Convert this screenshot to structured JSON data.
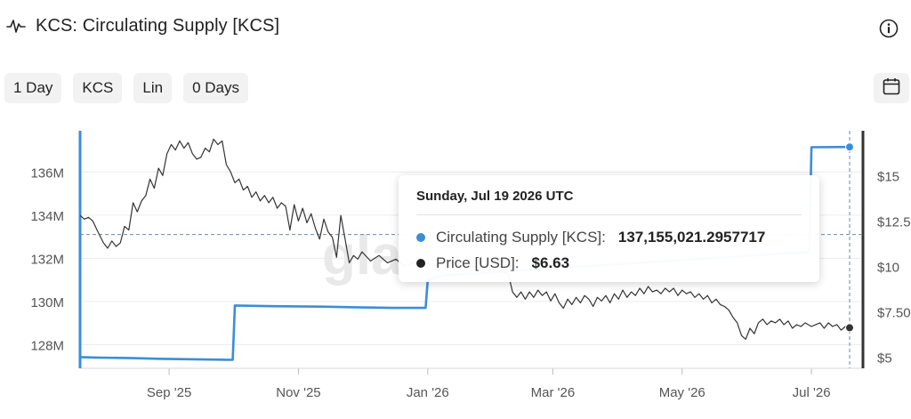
{
  "header": {
    "title": "KCS: Circulating Supply [KCS]",
    "chart_icon": "line-chart-icon",
    "info_icon": "info-icon"
  },
  "toolbar": {
    "interval": "1 Day",
    "unit": "KCS",
    "scale": "Lin",
    "smoothing": "0 Days",
    "calendar_icon": "calendar-icon"
  },
  "tooltip": {
    "date": "Sunday, Jul 19 2026 UTC",
    "rows": [
      {
        "label": "Circulating Supply [KCS]",
        "value": "137,155,021.2957717",
        "color": "#3b8ed6"
      },
      {
        "label": "Price [USD]",
        "value": "$6.63",
        "color": "#222222"
      }
    ]
  },
  "chart_data": {
    "type": "line",
    "title": "KCS: Circulating Supply [KCS]",
    "x_ticks": [
      "Sep '25",
      "Nov '25",
      "Jan '26",
      "Mar '26",
      "May '26",
      "Jul '26"
    ],
    "x_tick_dates": [
      "2025-09-01",
      "2025-11-01",
      "2026-01-01",
      "2026-03-01",
      "2026-05-01",
      "2026-07-01"
    ],
    "x_range": [
      "2025-07-21",
      "2026-07-19"
    ],
    "y_left": {
      "ticks": [
        "128M",
        "130M",
        "132M",
        "134M",
        "136M"
      ],
      "tick_values": [
        128,
        130,
        132,
        134,
        136
      ],
      "range": [
        126.9,
        138.2
      ],
      "unit": "M"
    },
    "y_right": {
      "ticks": [
        "$5",
        "$7.50",
        "$10",
        "$12.5",
        "$15"
      ],
      "tick_values": [
        5,
        7.5,
        10,
        12.5,
        15
      ],
      "range": [
        4.4,
        17.8
      ]
    },
    "grid": true,
    "watermark": "glassnode",
    "crosshair": {
      "date": "2026-07-19",
      "left_value": 133.1
    },
    "series": [
      {
        "name": "Circulating Supply [KCS]",
        "axis": "left",
        "color": "#3b8ed6",
        "points": [
          [
            "2025-07-21",
            127.42
          ],
          [
            "2025-07-28",
            127.4
          ],
          [
            "2025-08-15",
            127.37
          ],
          [
            "2025-08-27",
            127.34
          ],
          [
            "2025-09-10",
            127.32
          ],
          [
            "2025-09-25",
            127.3
          ],
          [
            "2025-10-01",
            127.29
          ],
          [
            "2025-10-02",
            129.81
          ],
          [
            "2025-10-20",
            129.78
          ],
          [
            "2025-11-12",
            129.76
          ],
          [
            "2025-11-28",
            129.73
          ],
          [
            "2025-12-15",
            129.7
          ],
          [
            "2025-12-31",
            129.7
          ],
          [
            "2026-01-01",
            131.0
          ],
          [
            "2026-01-08",
            131.2
          ],
          [
            "2026-06-30",
            132.3
          ],
          [
            "2026-07-01",
            137.15
          ],
          [
            "2026-07-19",
            137.16
          ]
        ]
      },
      {
        "name": "Price [USD]",
        "axis": "right",
        "color": "#333333",
        "points": [
          [
            "2025-07-21",
            12.8
          ],
          [
            "2025-07-23",
            12.6
          ],
          [
            "2025-07-25",
            12.7
          ],
          [
            "2025-07-27",
            12.5
          ],
          [
            "2025-07-29",
            12.0
          ],
          [
            "2025-08-01",
            11.3
          ],
          [
            "2025-08-03",
            11.0
          ],
          [
            "2025-08-05",
            11.4
          ],
          [
            "2025-08-07",
            11.1
          ],
          [
            "2025-08-09",
            11.3
          ],
          [
            "2025-08-11",
            12.2
          ],
          [
            "2025-08-13",
            12.0
          ],
          [
            "2025-08-15",
            13.5
          ],
          [
            "2025-08-17",
            13.0
          ],
          [
            "2025-08-19",
            13.6
          ],
          [
            "2025-08-21",
            13.9
          ],
          [
            "2025-08-23",
            14.8
          ],
          [
            "2025-08-25",
            14.3
          ],
          [
            "2025-08-27",
            15.4
          ],
          [
            "2025-08-29",
            15.0
          ],
          [
            "2025-08-31",
            16.2
          ],
          [
            "2025-09-02",
            16.7
          ],
          [
            "2025-09-04",
            16.4
          ],
          [
            "2025-09-06",
            16.9
          ],
          [
            "2025-09-08",
            16.5
          ],
          [
            "2025-09-10",
            16.8
          ],
          [
            "2025-09-12",
            16.2
          ],
          [
            "2025-09-14",
            15.9
          ],
          [
            "2025-09-16",
            16.0
          ],
          [
            "2025-09-18",
            16.5
          ],
          [
            "2025-09-20",
            16.3
          ],
          [
            "2025-09-22",
            17.0
          ],
          [
            "2025-09-24",
            16.7
          ],
          [
            "2025-09-26",
            16.9
          ],
          [
            "2025-09-28",
            15.6
          ],
          [
            "2025-09-30",
            15.2
          ],
          [
            "2025-10-02",
            14.6
          ],
          [
            "2025-10-04",
            14.8
          ],
          [
            "2025-10-06",
            14.2
          ],
          [
            "2025-10-08",
            14.4
          ],
          [
            "2025-10-10",
            13.8
          ],
          [
            "2025-10-12",
            14.1
          ],
          [
            "2025-10-14",
            13.6
          ],
          [
            "2025-10-16",
            13.9
          ],
          [
            "2025-10-18",
            13.5
          ],
          [
            "2025-10-20",
            13.8
          ],
          [
            "2025-10-22",
            13.2
          ],
          [
            "2025-10-24",
            13.5
          ],
          [
            "2025-10-26",
            13.3
          ],
          [
            "2025-10-28",
            12.0
          ],
          [
            "2025-10-30",
            13.4
          ],
          [
            "2025-11-01",
            12.5
          ],
          [
            "2025-11-03",
            13.2
          ],
          [
            "2025-11-05",
            12.4
          ],
          [
            "2025-11-07",
            12.9
          ],
          [
            "2025-11-09",
            12.1
          ],
          [
            "2025-11-11",
            11.5
          ],
          [
            "2025-11-13",
            12.6
          ],
          [
            "2025-11-15",
            11.9
          ],
          [
            "2025-11-17",
            11.6
          ],
          [
            "2025-11-19",
            10.5
          ],
          [
            "2025-11-21",
            12.8
          ],
          [
            "2025-11-23",
            11.5
          ],
          [
            "2025-11-25",
            10.2
          ],
          [
            "2025-11-27",
            10.6
          ],
          [
            "2025-11-29",
            10.4
          ],
          [
            "2025-12-01",
            10.8
          ],
          [
            "2025-12-05",
            10.3
          ],
          [
            "2025-12-09",
            10.6
          ],
          [
            "2025-12-13",
            10.2
          ],
          [
            "2025-12-17",
            10.4
          ],
          [
            "2025-12-21",
            10.0
          ],
          [
            "2025-12-27",
            10.3
          ],
          [
            "2026-01-02",
            10.1
          ],
          [
            "2026-01-10",
            10.3
          ],
          [
            "2026-01-20",
            10.0
          ],
          [
            "2026-01-30",
            9.9
          ],
          [
            "2026-02-05",
            9.7
          ],
          [
            "2026-02-08",
            9.6
          ],
          [
            "2026-02-10",
            8.6
          ],
          [
            "2026-02-12",
            8.3
          ],
          [
            "2026-02-14",
            8.6
          ],
          [
            "2026-02-16",
            8.2
          ],
          [
            "2026-02-18",
            8.6
          ],
          [
            "2026-02-20",
            8.3
          ],
          [
            "2026-02-22",
            8.7
          ],
          [
            "2026-02-24",
            8.4
          ],
          [
            "2026-02-26",
            8.6
          ],
          [
            "2026-02-28",
            8.1
          ],
          [
            "2026-03-02",
            8.5
          ],
          [
            "2026-03-04",
            8.0
          ],
          [
            "2026-03-06",
            7.7
          ],
          [
            "2026-03-08",
            8.2
          ],
          [
            "2026-03-10",
            7.9
          ],
          [
            "2026-03-12",
            8.3
          ],
          [
            "2026-03-14",
            8.0
          ],
          [
            "2026-03-16",
            8.4
          ],
          [
            "2026-03-18",
            8.2
          ],
          [
            "2026-03-20",
            7.8
          ],
          [
            "2026-03-22",
            8.3
          ],
          [
            "2026-03-24",
            8.1
          ],
          [
            "2026-03-26",
            8.4
          ],
          [
            "2026-03-28",
            8.0
          ],
          [
            "2026-03-30",
            8.5
          ],
          [
            "2026-04-01",
            8.2
          ],
          [
            "2026-04-03",
            8.7
          ],
          [
            "2026-04-05",
            8.3
          ],
          [
            "2026-04-07",
            8.6
          ],
          [
            "2026-04-09",
            8.4
          ],
          [
            "2026-04-11",
            8.8
          ],
          [
            "2026-04-13",
            8.5
          ],
          [
            "2026-04-15",
            8.9
          ],
          [
            "2026-04-17",
            8.6
          ],
          [
            "2026-04-19",
            8.7
          ],
          [
            "2026-04-21",
            8.5
          ],
          [
            "2026-04-23",
            8.8
          ],
          [
            "2026-04-25",
            8.6
          ],
          [
            "2026-04-27",
            8.8
          ],
          [
            "2026-04-29",
            8.4
          ],
          [
            "2026-05-01",
            8.7
          ],
          [
            "2026-05-03",
            8.5
          ],
          [
            "2026-05-05",
            8.6
          ],
          [
            "2026-05-07",
            8.3
          ],
          [
            "2026-05-09",
            8.5
          ],
          [
            "2026-05-11",
            8.2
          ],
          [
            "2026-05-13",
            8.4
          ],
          [
            "2026-05-15",
            8.0
          ],
          [
            "2026-05-17",
            8.2
          ],
          [
            "2026-05-19",
            7.9
          ],
          [
            "2026-05-21",
            7.8
          ],
          [
            "2026-05-23",
            7.6
          ],
          [
            "2026-05-25",
            7.2
          ],
          [
            "2026-05-27",
            6.9
          ],
          [
            "2026-05-29",
            6.2
          ],
          [
            "2026-05-31",
            6.0
          ],
          [
            "2026-06-02",
            6.6
          ],
          [
            "2026-06-04",
            6.3
          ],
          [
            "2026-06-06",
            6.9
          ],
          [
            "2026-06-08",
            7.1
          ],
          [
            "2026-06-10",
            6.8
          ],
          [
            "2026-06-12",
            7.0
          ],
          [
            "2026-06-14",
            6.9
          ],
          [
            "2026-06-16",
            7.1
          ],
          [
            "2026-06-18",
            6.8
          ],
          [
            "2026-06-20",
            7.0
          ],
          [
            "2026-06-22",
            6.6
          ],
          [
            "2026-06-24",
            6.8
          ],
          [
            "2026-06-26",
            6.7
          ],
          [
            "2026-06-28",
            6.9
          ],
          [
            "2026-07-01",
            6.7
          ],
          [
            "2026-07-03",
            6.8
          ],
          [
            "2026-07-05",
            6.9
          ],
          [
            "2026-07-07",
            6.6
          ],
          [
            "2026-07-09",
            6.9
          ],
          [
            "2026-07-11",
            6.7
          ],
          [
            "2026-07-13",
            6.8
          ],
          [
            "2026-07-15",
            6.5
          ],
          [
            "2026-07-17",
            6.7
          ],
          [
            "2026-07-19",
            6.63
          ]
        ]
      }
    ]
  }
}
